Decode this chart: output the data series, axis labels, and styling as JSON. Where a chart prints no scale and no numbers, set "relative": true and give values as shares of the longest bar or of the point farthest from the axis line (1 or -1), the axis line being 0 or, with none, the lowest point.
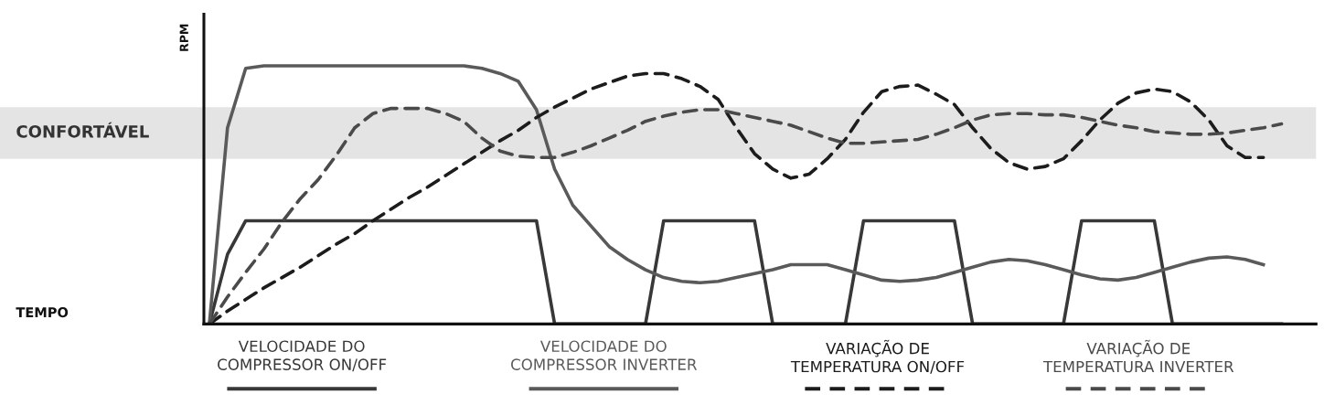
{
  "chart_data": {
    "type": "line",
    "relative": true,
    "annotations": [
      "TEMPO"
    ],
    "ylabel": "RPM",
    "legend": "bottom",
    "grid": false,
    "marker": "none",
    "categories": [
      null,
      null,
      null,
      null,
      null,
      null,
      null,
      null,
      null,
      null,
      null,
      null,
      null,
      null,
      null,
      null,
      null,
      null,
      null,
      null,
      null,
      null,
      null,
      null,
      null,
      null,
      null,
      null,
      null,
      null,
      null,
      null,
      null,
      null,
      null,
      null,
      null,
      null,
      null,
      null,
      null,
      null,
      null,
      null,
      null,
      null,
      null,
      null,
      null,
      null,
      null,
      null,
      null,
      null,
      null,
      null,
      null,
      null,
      null,
      null
    ],
    "bands": [
      {
        "axis": "y",
        "from": 0.64,
        "to": 0.84,
        "label": "CONFORTÁVEL",
        "color": "#e4e4e4"
      }
    ],
    "series": [
      {
        "name": "VELOCIDADE DO COMPRESSOR ON/OFF",
        "color": "#383838",
        "line_style": "solid",
        "values": [
          0,
          0.27,
          0.4,
          0.4,
          0.4,
          0.4,
          0.4,
          0.4,
          0.4,
          0.4,
          0.4,
          0.4,
          0.4,
          0.4,
          0.4,
          0.4,
          0.4,
          0.4,
          0.4,
          0,
          0,
          0,
          0,
          0,
          0,
          0.4,
          0.4,
          0.4,
          0.4,
          0.4,
          0.4,
          0,
          0,
          0,
          0,
          0,
          0.4,
          0.4,
          0.4,
          0.4,
          0.4,
          0.4,
          0,
          0,
          0,
          0,
          0,
          0,
          0.4,
          0.4,
          0.4,
          0.4,
          0.4,
          0,
          0,
          0,
          0,
          0,
          0,
          0
        ]
      },
      {
        "name": "VELOCIDADE DO COMPRESSOR INVERTER",
        "color": "#5a5a5a",
        "line_style": "solid",
        "values": [
          0,
          0.76,
          0.99,
          1,
          1,
          1,
          1,
          1,
          1,
          1,
          1,
          1,
          1,
          1,
          1,
          0.99,
          0.97,
          0.94,
          0.83,
          0.6,
          0.46,
          0.38,
          0.3,
          0.25,
          0.21,
          0.18,
          0.165,
          0.16,
          0.165,
          0.18,
          0.195,
          0.21,
          0.23,
          0.23,
          0.23,
          0.21,
          0.19,
          0.17,
          0.165,
          0.17,
          0.18,
          0.2,
          0.22,
          0.24,
          0.25,
          0.245,
          0.23,
          0.21,
          0.19,
          0.175,
          0.17,
          0.18,
          0.2,
          0.22,
          0.24,
          0.255,
          0.26,
          0.25,
          0.23,
          null
        ]
      },
      {
        "name": "VARIAÇÃO DE TEMPERATURA ON/OFF",
        "color": "#1c1c1c",
        "line_style": "dashed",
        "values": [
          0,
          0.05,
          0.095,
          0.14,
          0.18,
          0.22,
          0.265,
          0.31,
          0.35,
          0.4,
          0.445,
          0.49,
          0.53,
          0.575,
          0.62,
          0.665,
          0.71,
          0.75,
          0.8,
          0.84,
          0.875,
          0.91,
          0.935,
          0.96,
          0.97,
          0.97,
          0.95,
          0.92,
          0.87,
          0.76,
          0.66,
          0.6,
          0.565,
          0.58,
          0.64,
          0.715,
          0.82,
          0.9,
          0.92,
          0.925,
          0.89,
          0.85,
          0.76,
          0.68,
          0.625,
          0.6,
          0.61,
          0.64,
          0.71,
          0.79,
          0.855,
          0.895,
          0.91,
          0.9,
          0.86,
          0.79,
          0.69,
          0.645,
          0.645,
          null
        ]
      },
      {
        "name": "VARIAÇÃO DE TEMPERATURA INVERTER",
        "color": "#4a4a4a",
        "line_style": "dashed",
        "values": [
          0,
          0.105,
          0.2,
          0.29,
          0.395,
          0.485,
          0.56,
          0.655,
          0.76,
          0.815,
          0.835,
          0.835,
          0.835,
          0.815,
          0.785,
          0.72,
          0.67,
          0.65,
          0.645,
          0.645,
          0.665,
          0.69,
          0.72,
          0.75,
          0.785,
          0.805,
          0.82,
          0.83,
          0.83,
          0.815,
          0.8,
          0.785,
          0.77,
          0.745,
          0.72,
          0.7,
          0.7,
          0.705,
          0.71,
          0.715,
          0.735,
          0.76,
          0.79,
          0.81,
          0.815,
          0.815,
          0.81,
          0.81,
          0.8,
          0.785,
          0.77,
          0.76,
          0.745,
          0.74,
          0.735,
          0.735,
          0.74,
          0.75,
          0.76,
          0.775
        ]
      }
    ]
  }
}
